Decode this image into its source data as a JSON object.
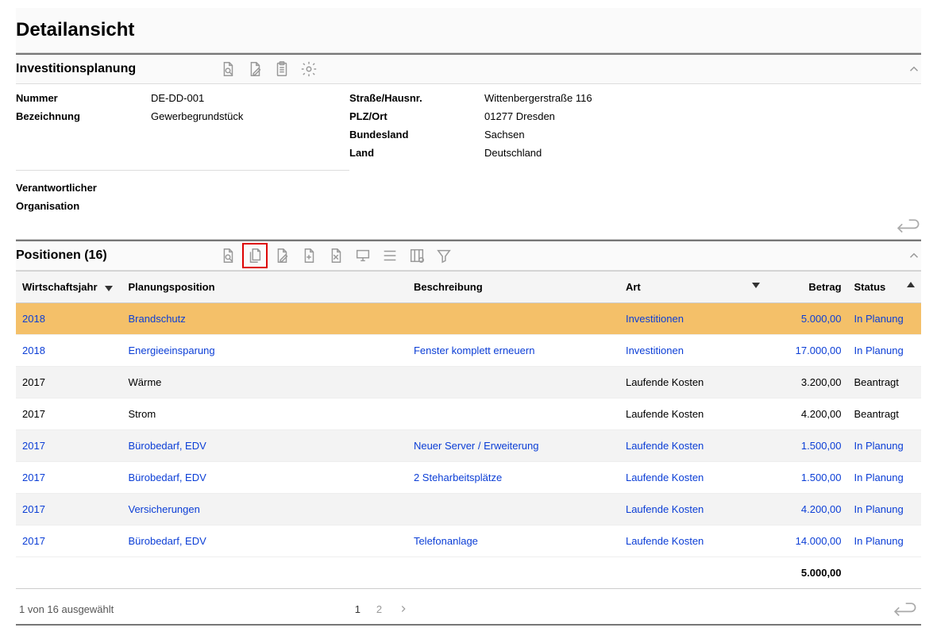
{
  "page": {
    "title": "Detailansicht"
  },
  "investSection": {
    "title": "Investitionsplanung",
    "fields": {
      "nummer_label": "Nummer",
      "nummer": "DE-DD-001",
      "bezeichnung_label": "Bezeichnung",
      "bezeichnung": "Gewerbegrundstück",
      "verantwortlicher_label": "Verantwortlicher",
      "verantwortlicher": "",
      "organisation_label": "Organisation",
      "organisation": "",
      "strasse_label": "Straße/Hausnr.",
      "strasse": "Wittenbergerstraße 116",
      "plzort_label": "PLZ/Ort",
      "plzort": "01277 Dresden",
      "bundesland_label": "Bundesland",
      "bundesland": "Sachsen",
      "land_label": "Land",
      "land": "Deutschland"
    }
  },
  "positionsSection": {
    "title": "Positionen (16)",
    "columns": {
      "year": "Wirtschaftsjahr",
      "position": "Planungsposition",
      "description": "Beschreibung",
      "type": "Art",
      "amount": "Betrag",
      "status": "Status"
    },
    "rows": [
      {
        "year": "2018",
        "position": "Brandschutz",
        "description": "",
        "type": "Investitionen",
        "amount": "5.000,00",
        "status": "In Planung",
        "link": true,
        "selected": true
      },
      {
        "year": "2018",
        "position": "Energieeinsparung",
        "description": "Fenster komplett erneuern",
        "type": "Investitionen",
        "amount": "17.000,00",
        "status": "In Planung",
        "link": true
      },
      {
        "year": "2017",
        "position": "Wärme",
        "description": "",
        "type": "Laufende Kosten",
        "amount": "3.200,00",
        "status": "Beantragt",
        "link": false
      },
      {
        "year": "2017",
        "position": "Strom",
        "description": "",
        "type": "Laufende Kosten",
        "amount": "4.200,00",
        "status": "Beantragt",
        "link": false
      },
      {
        "year": "2017",
        "position": "Bürobedarf, EDV",
        "description": "Neuer Server / Erweiterung",
        "type": "Laufende Kosten",
        "amount": "1.500,00",
        "status": "In Planung",
        "link": true
      },
      {
        "year": "2017",
        "position": "Bürobedarf, EDV",
        "description": "2 Steharbeitsplätze",
        "type": "Laufende Kosten",
        "amount": "1.500,00",
        "status": "In Planung",
        "link": true
      },
      {
        "year": "2017",
        "position": "Versicherungen",
        "description": "",
        "type": "Laufende Kosten",
        "amount": "4.200,00",
        "status": "In Planung",
        "link": true
      },
      {
        "year": "2017",
        "position": "Bürobedarf, EDV",
        "description": "Telefonanlage",
        "type": "Laufende Kosten",
        "amount": "14.000,00",
        "status": "In Planung",
        "link": true
      }
    ],
    "sum": "5.000,00",
    "footer": {
      "selection": "1 von 16 ausgewählt",
      "pages": [
        "1",
        "2"
      ],
      "currentPage": 0
    }
  },
  "colors": {
    "link": "#0b3ed6",
    "selectedRow": "#f4c069",
    "iconGray": "#999999",
    "highlightRed": "#d00000"
  }
}
